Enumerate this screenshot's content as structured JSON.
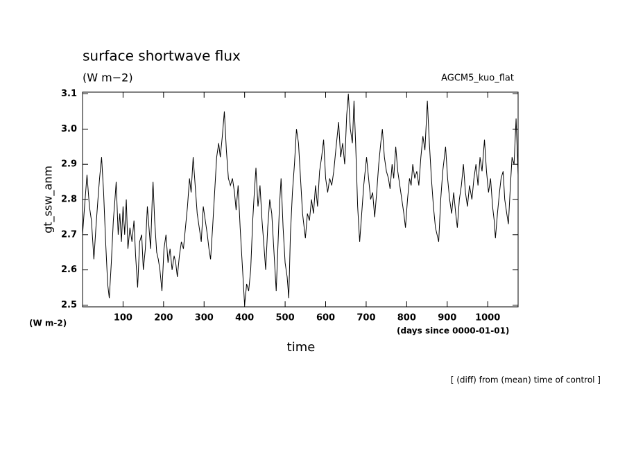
{
  "chart_data": {
    "type": "line",
    "title": "surface shortwave flux",
    "subtitle": "(W m−2)",
    "annotation": "AGCM5_kuo_flat",
    "ylabel": "gt_ssw_anm",
    "yunits": "(W m-2)",
    "xlabel": "time",
    "xunits": "(days since 0000-01-01)",
    "footnote": "[ (diff) from (mean) time of control ]",
    "color": "#000000",
    "xlim": [
      0,
      1075
    ],
    "ylim": [
      2.495,
      3.105
    ],
    "xticks": [
      100,
      200,
      300,
      400,
      500,
      600,
      700,
      800,
      900,
      1000
    ],
    "yticks": [
      2.5,
      2.6,
      2.7,
      2.8,
      2.9,
      {
        "value": 3.0,
        "label": "3.0"
      },
      3.1
    ],
    "x": [
      0,
      5,
      11,
      17,
      22,
      28,
      33,
      38,
      42,
      47,
      52,
      57,
      62,
      66,
      71,
      76,
      80,
      83,
      88,
      92,
      96,
      100,
      104,
      108,
      112,
      117,
      122,
      127,
      131,
      136,
      141,
      146,
      150,
      155,
      160,
      164,
      168,
      172,
      174,
      178,
      183,
      187,
      191,
      196,
      201,
      206,
      211,
      216,
      221,
      226,
      230,
      234,
      239,
      244,
      249,
      254,
      259,
      264,
      268,
      273,
      278,
      283,
      288,
      293,
      298,
      303,
      308,
      312,
      316,
      321,
      326,
      331,
      336,
      340,
      345,
      350,
      355,
      360,
      365,
      370,
      375,
      379,
      384,
      389,
      394,
      400,
      405,
      410,
      415,
      420,
      424,
      428,
      433,
      438,
      443,
      447,
      452,
      457,
      462,
      467,
      472,
      478,
      482,
      486,
      490,
      495,
      500,
      505,
      509,
      513,
      518,
      523,
      528,
      533,
      538,
      543,
      547,
      550,
      555,
      560,
      565,
      570,
      575,
      580,
      585,
      590,
      595,
      600,
      605,
      610,
      615,
      620,
      625,
      632,
      637,
      642,
      647,
      652,
      656,
      661,
      666,
      670,
      674,
      679,
      684,
      689,
      694,
      701,
      706,
      711,
      716,
      721,
      726,
      731,
      736,
      740,
      745,
      750,
      755,
      759,
      764,
      768,
      773,
      778,
      783,
      788,
      793,
      797,
      802,
      807,
      811,
      815,
      820,
      825,
      830,
      835,
      840,
      845,
      851,
      856,
      861,
      866,
      871,
      875,
      879,
      884,
      889,
      893,
      896,
      901,
      906,
      911,
      916,
      921,
      925,
      930,
      935,
      940,
      945,
      950,
      955,
      961,
      966,
      971,
      976,
      981,
      986,
      992,
      997,
      1002,
      1007,
      1012,
      1016,
      1019,
      1024,
      1029,
      1033,
      1038,
      1042,
      1047,
      1051,
      1056,
      1060,
      1065,
      1070,
      1075
    ],
    "values": [
      2.7,
      2.78,
      2.87,
      2.78,
      2.74,
      2.63,
      2.72,
      2.8,
      2.86,
      2.92,
      2.82,
      2.68,
      2.56,
      2.52,
      2.62,
      2.74,
      2.8,
      2.85,
      2.7,
      2.76,
      2.68,
      2.78,
      2.7,
      2.8,
      2.66,
      2.72,
      2.68,
      2.74,
      2.64,
      2.55,
      2.68,
      2.7,
      2.6,
      2.66,
      2.78,
      2.72,
      2.66,
      2.8,
      2.85,
      2.74,
      2.65,
      2.63,
      2.6,
      2.54,
      2.66,
      2.7,
      2.62,
      2.66,
      2.6,
      2.64,
      2.62,
      2.58,
      2.64,
      2.68,
      2.66,
      2.72,
      2.78,
      2.86,
      2.82,
      2.92,
      2.84,
      2.76,
      2.72,
      2.68,
      2.78,
      2.74,
      2.7,
      2.66,
      2.63,
      2.72,
      2.82,
      2.92,
      2.96,
      2.92,
      2.98,
      3.05,
      2.94,
      2.86,
      2.84,
      2.86,
      2.82,
      2.77,
      2.84,
      2.72,
      2.62,
      2.5,
      2.56,
      2.54,
      2.6,
      2.74,
      2.82,
      2.89,
      2.78,
      2.84,
      2.74,
      2.68,
      2.6,
      2.72,
      2.8,
      2.76,
      2.66,
      2.54,
      2.66,
      2.78,
      2.86,
      2.72,
      2.62,
      2.58,
      2.52,
      2.7,
      2.82,
      2.9,
      3.0,
      2.96,
      2.86,
      2.76,
      2.72,
      2.69,
      2.76,
      2.74,
      2.8,
      2.76,
      2.84,
      2.78,
      2.88,
      2.92,
      2.97,
      2.86,
      2.82,
      2.86,
      2.84,
      2.88,
      2.94,
      3.02,
      2.92,
      2.96,
      2.9,
      3.04,
      3.1,
      3.0,
      2.96,
      3.08,
      2.96,
      2.78,
      2.68,
      2.76,
      2.84,
      2.92,
      2.86,
      2.8,
      2.82,
      2.75,
      2.82,
      2.9,
      2.96,
      3.0,
      2.92,
      2.88,
      2.86,
      2.83,
      2.9,
      2.86,
      2.95,
      2.88,
      2.84,
      2.8,
      2.76,
      2.72,
      2.8,
      2.86,
      2.84,
      2.9,
      2.86,
      2.88,
      2.84,
      2.92,
      2.98,
      2.94,
      3.08,
      2.96,
      2.86,
      2.78,
      2.72,
      2.7,
      2.68,
      2.8,
      2.88,
      2.92,
      2.95,
      2.86,
      2.8,
      2.76,
      2.82,
      2.76,
      2.72,
      2.8,
      2.84,
      2.9,
      2.82,
      2.78,
      2.84,
      2.8,
      2.86,
      2.9,
      2.84,
      2.92,
      2.88,
      2.97,
      2.88,
      2.82,
      2.86,
      2.78,
      2.74,
      2.69,
      2.76,
      2.82,
      2.86,
      2.88,
      2.8,
      2.76,
      2.73,
      2.84,
      2.92,
      2.9,
      3.03,
      2.87
    ]
  }
}
